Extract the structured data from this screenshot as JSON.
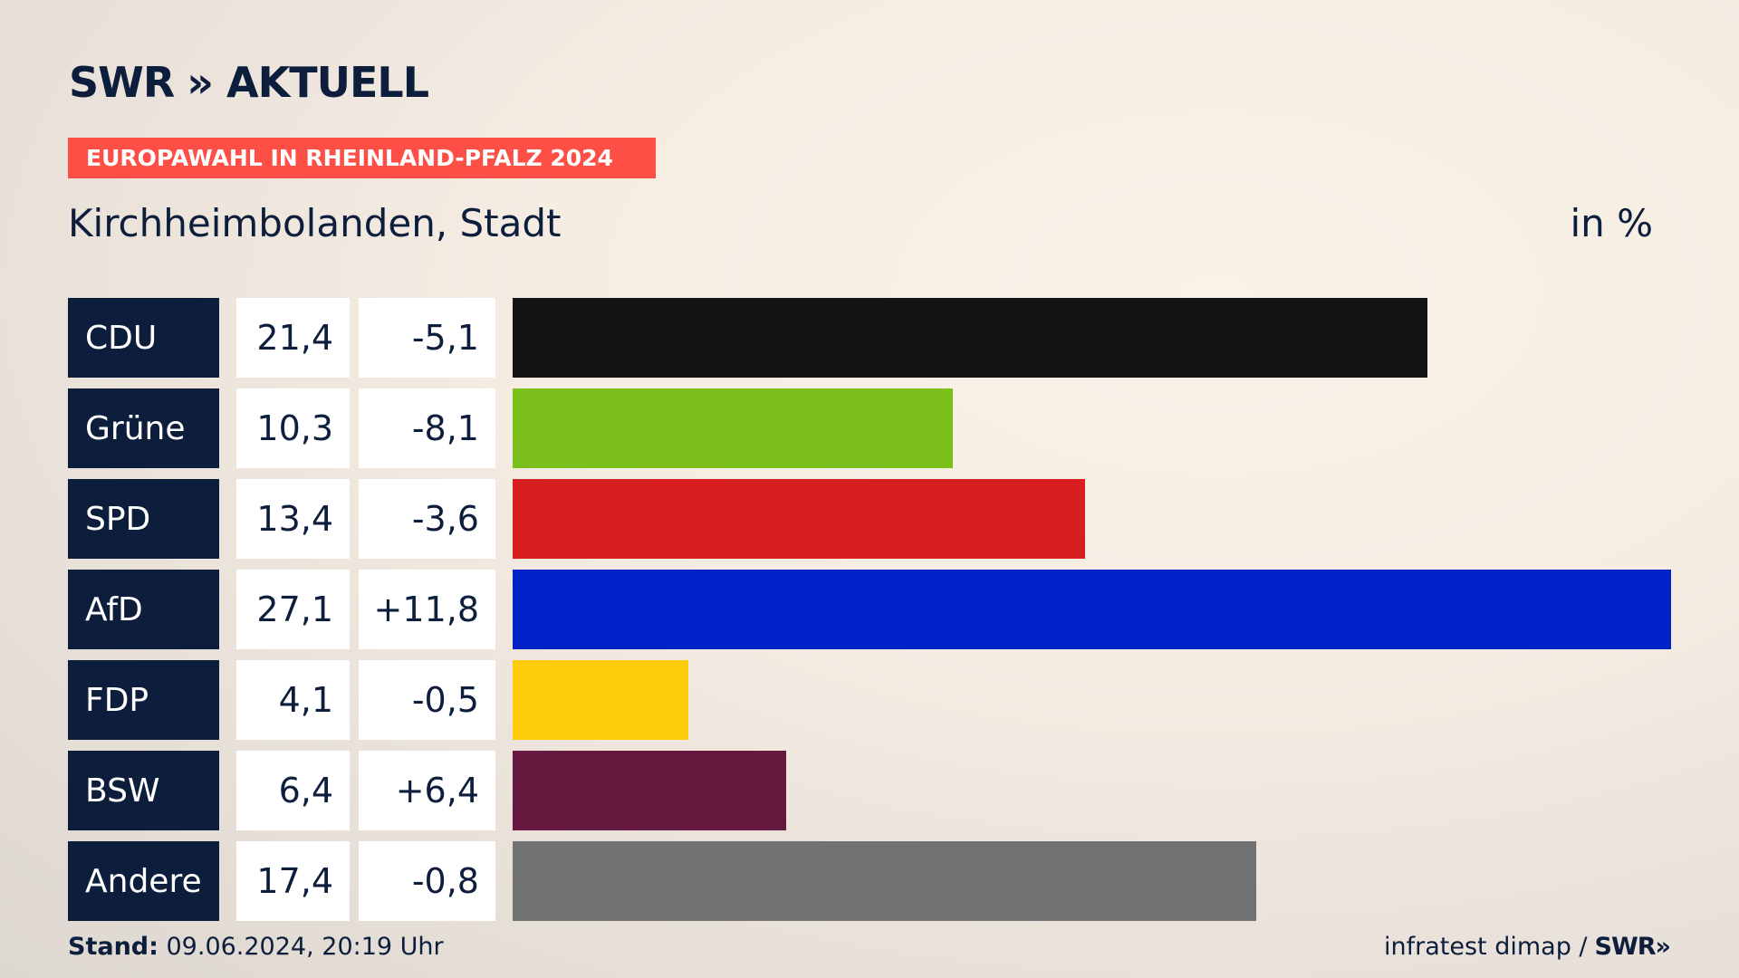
{
  "header": {
    "logo_text": "SWR",
    "logo_chevrons": "»",
    "logo_sub": "AKTUELL",
    "badge": "EUROPAWAHL IN RHEINLAND-PFALZ 2024",
    "title": "Kirchheimbolanden, Stadt",
    "unit": "in %"
  },
  "colors": {
    "navy": "#0d1e3d",
    "badge": "#fd4f45"
  },
  "chart_data": {
    "type": "bar",
    "orientation": "horizontal",
    "categories": [
      "CDU",
      "Grüne",
      "SPD",
      "AfD",
      "FDP",
      "BSW",
      "Andere"
    ],
    "values": [
      21.4,
      10.3,
      13.4,
      27.1,
      4.1,
      6.4,
      17.4
    ],
    "value_labels": [
      "21,4",
      "10,3",
      "13,4",
      "27,1",
      "4,1",
      "6,4",
      "17,4"
    ],
    "changes": [
      -5.1,
      -8.1,
      -3.6,
      11.8,
      -0.5,
      6.4,
      -0.8
    ],
    "change_labels": [
      "-5,1",
      "-8,1",
      "-3,6",
      "+11,8",
      "-0,5",
      "+6,4",
      "-0,8"
    ],
    "bar_colors": [
      "#141414",
      "#7abf1c",
      "#d71f1f",
      "#0022c8",
      "#ffcc0a",
      "#66193f",
      "#717274"
    ],
    "xlim": [
      0,
      27.1
    ],
    "title": "Kirchheimbolanden, Stadt",
    "ylabel": "",
    "xlabel": ""
  },
  "footer": {
    "stand_label": "Stand:",
    "stand_value": " 09.06.2024, 20:19 Uhr",
    "source": "infratest dimap /",
    "source_logo": "SWR»"
  }
}
